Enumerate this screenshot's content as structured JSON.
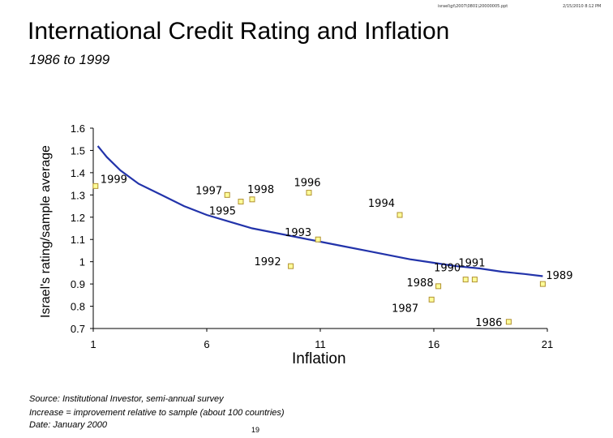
{
  "header": {
    "path": "israel\\gt\\2007\\0801\\20000005.ppt",
    "date": "2/15/2010 8:12 PM"
  },
  "footer": {
    "source": "Source: Institutional Investor, semi-annual survey",
    "note": "Increase = improvement relative to sample (about 100 countries)",
    "date": "Date:  January 2000",
    "page": "19"
  },
  "colors": {
    "curve": "#2233aa",
    "marker": "#ffff99",
    "marker_border": "#b09030"
  },
  "chart_data": {
    "type": "scatter",
    "title": "International Credit Rating and Inflation",
    "subtitle": "1986 to 1999",
    "xlabel": "Inflation",
    "ylabel": "Israel's rating/sample average",
    "xlim": [
      1,
      21
    ],
    "ylim": [
      0.7,
      1.6
    ],
    "x_ticks": [
      1,
      6,
      11,
      16,
      21
    ],
    "y_ticks": [
      1.6,
      1.5,
      1.4,
      1.3,
      1.2,
      1.1,
      1,
      0.9,
      0.8,
      0.7
    ],
    "y_tick_labels": [
      "1.6",
      "1.5",
      "1.4",
      "1.3",
      "1.2",
      "1.1",
      "1",
      "0.9",
      "0.8",
      "0.7"
    ],
    "x_tick_labels": [
      "1",
      "6",
      "11",
      "16",
      "21"
    ],
    "points": [
      {
        "year": "1999",
        "x": 1.1,
        "y": 1.34
      },
      {
        "year": "1997",
        "x": 6.9,
        "y": 1.3
      },
      {
        "year": "1998",
        "x": 8.0,
        "y": 1.28
      },
      {
        "year": "1995",
        "x": 7.5,
        "y": 1.27
      },
      {
        "year": "1996",
        "x": 10.5,
        "y": 1.31
      },
      {
        "year": "1994",
        "x": 14.5,
        "y": 1.21
      },
      {
        "year": "1993",
        "x": 10.9,
        "y": 1.1
      },
      {
        "year": "1992",
        "x": 9.7,
        "y": 0.98
      },
      {
        "year": "1988",
        "x": 16.2,
        "y": 0.89
      },
      {
        "year": "1990",
        "x": 17.4,
        "y": 0.92
      },
      {
        "year": "1991",
        "x": 17.8,
        "y": 0.92
      },
      {
        "year": "1989",
        "x": 20.8,
        "y": 0.9
      },
      {
        "year": "1987",
        "x": 15.9,
        "y": 0.83
      },
      {
        "year": "1986",
        "x": 19.3,
        "y": 0.73
      }
    ],
    "trend_curve": [
      {
        "x": 1.2,
        "y": 1.52
      },
      {
        "x": 1.6,
        "y": 1.47
      },
      {
        "x": 2.2,
        "y": 1.41
      },
      {
        "x": 3,
        "y": 1.35
      },
      {
        "x": 4,
        "y": 1.3
      },
      {
        "x": 5,
        "y": 1.25
      },
      {
        "x": 6,
        "y": 1.21
      },
      {
        "x": 7,
        "y": 1.18
      },
      {
        "x": 8,
        "y": 1.15
      },
      {
        "x": 9,
        "y": 1.13
      },
      {
        "x": 10,
        "y": 1.11
      },
      {
        "x": 11,
        "y": 1.09
      },
      {
        "x": 12,
        "y": 1.07
      },
      {
        "x": 13,
        "y": 1.05
      },
      {
        "x": 14,
        "y": 1.03
      },
      {
        "x": 15,
        "y": 1.01
      },
      {
        "x": 16,
        "y": 0.995
      },
      {
        "x": 17,
        "y": 0.98
      },
      {
        "x": 18,
        "y": 0.97
      },
      {
        "x": 19,
        "y": 0.955
      },
      {
        "x": 20,
        "y": 0.945
      },
      {
        "x": 20.8,
        "y": 0.935
      }
    ],
    "grid": false,
    "legend": "none"
  }
}
